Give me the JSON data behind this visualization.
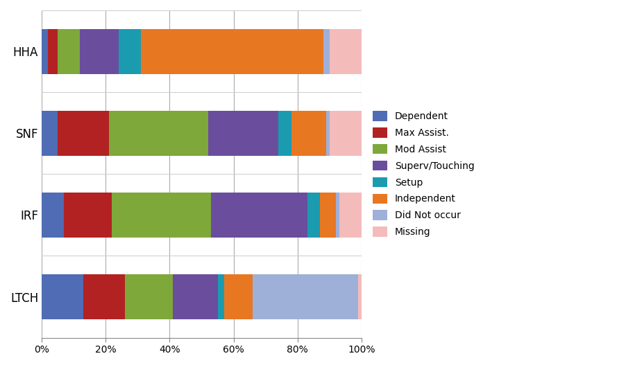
{
  "providers": [
    "LTCH",
    "IRF",
    "SNF",
    "HHA"
  ],
  "categories": [
    "Dependent",
    "Max Assist.",
    "Mod Assist",
    "Superv/Touching",
    "Setup",
    "Independent",
    "Did Not occur",
    "Missing"
  ],
  "colors": [
    "#4F6CB4",
    "#B22222",
    "#7EA83A",
    "#6B4D9E",
    "#1B9BB0",
    "#E87722",
    "#9EB0D8",
    "#F4BBBB"
  ],
  "values": {
    "LTCH": [
      13,
      13,
      15,
      14,
      2,
      9,
      33,
      1
    ],
    "IRF": [
      7,
      15,
      31,
      30,
      4,
      5,
      1,
      7
    ],
    "SNF": [
      5,
      16,
      31,
      22,
      4,
      11,
      1,
      10
    ],
    "HHA": [
      2,
      3,
      7,
      12,
      7,
      57,
      2,
      10
    ]
  },
  "xlim": [
    0,
    100
  ],
  "xticks": [
    0,
    20,
    40,
    60,
    80,
    100
  ],
  "xticklabels": [
    "0%",
    "20%",
    "40%",
    "60%",
    "80%",
    "100%"
  ],
  "background_color": "#FFFFFF",
  "bar_height": 0.55
}
